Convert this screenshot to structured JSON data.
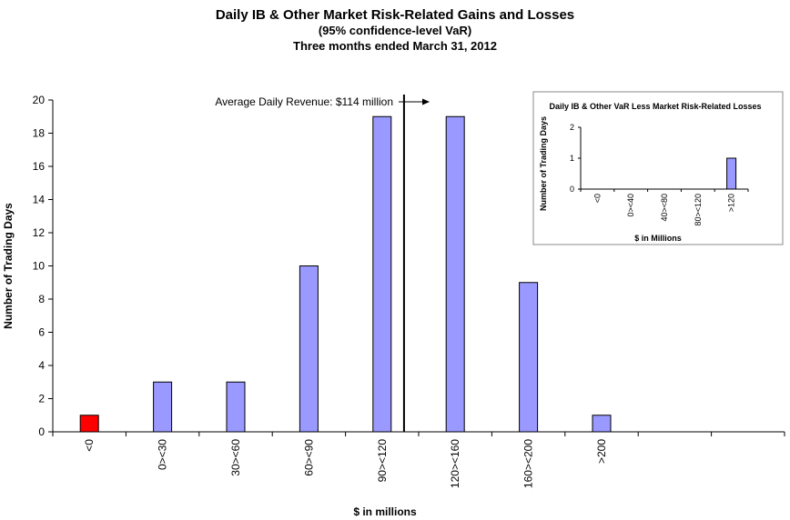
{
  "titles": {
    "line1": "Daily IB & Other Market Risk-Related Gains and Losses",
    "line2": "(95% confidence-level  VaR)",
    "line3": "Three months ended March 31, 2012"
  },
  "chart_data": [
    {
      "type": "bar",
      "title": "Daily IB & Other Market Risk-Related Gains and Losses",
      "subtitle": "(95% confidence-level  VaR)",
      "period": "Three months ended March 31, 2012",
      "xlabel": "$ in millions",
      "ylabel": "Number of Trading Days",
      "ylim": [
        0,
        20
      ],
      "yticks": [
        0,
        2,
        4,
        6,
        8,
        10,
        12,
        14,
        16,
        18,
        20
      ],
      "categories": [
        "<0",
        "0><30",
        "30><60",
        "60><90",
        "90><120",
        "120><160",
        "160><200",
        ">200",
        "",
        ""
      ],
      "values": [
        1,
        3,
        3,
        10,
        19,
        19,
        9,
        1,
        null,
        null
      ],
      "colors": [
        "#ff0000",
        "#9999ff",
        "#9999ff",
        "#9999ff",
        "#9999ff",
        "#9999ff",
        "#9999ff",
        "#9999ff",
        "#9999ff",
        "#9999ff"
      ],
      "grid": false,
      "legend": "none",
      "annotation": {
        "text": "Average Daily Revenue:  $114  million",
        "value": 114
      }
    },
    {
      "type": "bar",
      "title": "Daily IB & Other VaR Less Market Risk-Related Losses",
      "xlabel": "$ in Millions",
      "ylabel": "Number of Trading Days",
      "ylim": [
        0,
        2
      ],
      "yticks": [
        0,
        1,
        2
      ],
      "categories": [
        "<0",
        "0><40",
        "40><80",
        "80><120",
        ">120"
      ],
      "values": [
        0,
        0,
        0,
        0,
        1
      ],
      "colors": [
        "#9999ff"
      ],
      "placement": "top-right"
    }
  ]
}
